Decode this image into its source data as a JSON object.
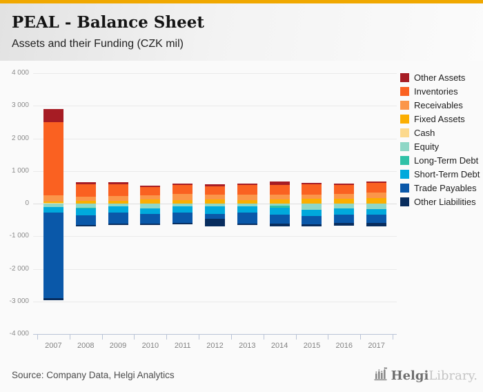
{
  "header": {
    "title": "PEAL - Balance Sheet",
    "subtitle": "Assets and their Funding (CZK mil)",
    "accent_color": "#f0a800"
  },
  "chart_data": {
    "type": "bar",
    "stacked": true,
    "title": "PEAL - Balance Sheet",
    "subtitle": "Assets and their Funding (CZK mil)",
    "xlabel": "",
    "ylabel": "",
    "unit": "CZK mil",
    "grid": true,
    "legend_position": "right",
    "ylim": [
      -4000,
      4000
    ],
    "ytick_step": 1000,
    "ytick_labels": [
      "4 000",
      "3 000",
      "2 000",
      "1 000",
      "0",
      "-1 000",
      "-2 000",
      "-3 000",
      "-4 000"
    ],
    "categories": [
      "2007",
      "2008",
      "2009",
      "2010",
      "2011",
      "2012",
      "2013",
      "2014",
      "2015",
      "2016",
      "2017"
    ],
    "series": [
      {
        "name": "Other Assets",
        "color": "#a61c24",
        "values": [
          400,
          70,
          65,
          55,
          50,
          55,
          55,
          100,
          40,
          40,
          55
        ]
      },
      {
        "name": "Inventories",
        "color": "#fa6121",
        "values": [
          2240,
          380,
          355,
          255,
          280,
          270,
          295,
          295,
          310,
          270,
          295
        ]
      },
      {
        "name": "Receivables",
        "color": "#fb964a",
        "values": [
          190,
          125,
          155,
          125,
          175,
          140,
          155,
          145,
          140,
          140,
          165
        ]
      },
      {
        "name": "Fixed Assets",
        "color": "#fbae00",
        "values": [
          50,
          75,
          75,
          115,
          115,
          125,
          115,
          135,
          145,
          155,
          165
        ]
      },
      {
        "name": "Cash",
        "color": "#fcd98c",
        "values": [
          20,
          10,
          10,
          10,
          0,
          0,
          0,
          0,
          0,
          0,
          0
        ]
      },
      {
        "name": "Equity",
        "color": "#8ed7c6",
        "values": [
          -105,
          -120,
          -90,
          -140,
          -85,
          -95,
          -95,
          -70,
          -180,
          -140,
          -170
        ]
      },
      {
        "name": "Long-Term Debt",
        "color": "#2fc1a7",
        "values": [
          0,
          -35,
          0,
          0,
          0,
          0,
          0,
          -55,
          0,
          0,
          0
        ]
      },
      {
        "name": "Short-Term Debt",
        "color": "#00a9dc",
        "values": [
          -170,
          -200,
          -175,
          -170,
          -190,
          -215,
          -180,
          -205,
          -195,
          -205,
          -175
        ]
      },
      {
        "name": "Trade Payables",
        "color": "#0a58a9",
        "values": [
          -2630,
          -295,
          -355,
          -295,
          -315,
          -155,
          -330,
          -285,
          -260,
          -245,
          -245
        ]
      },
      {
        "name": "Other Liabilities",
        "color": "#082d5e",
        "values": [
          -50,
          -40,
          -40,
          -45,
          -55,
          -225,
          -55,
          -90,
          -55,
          -85,
          -115
        ]
      }
    ]
  },
  "footer": {
    "source": "Source: Company Data, Helgi Analytics",
    "logo": {
      "brand_primary": "Helgi",
      "brand_secondary": "Library.",
      "icon": "castle-chart-icon"
    }
  }
}
